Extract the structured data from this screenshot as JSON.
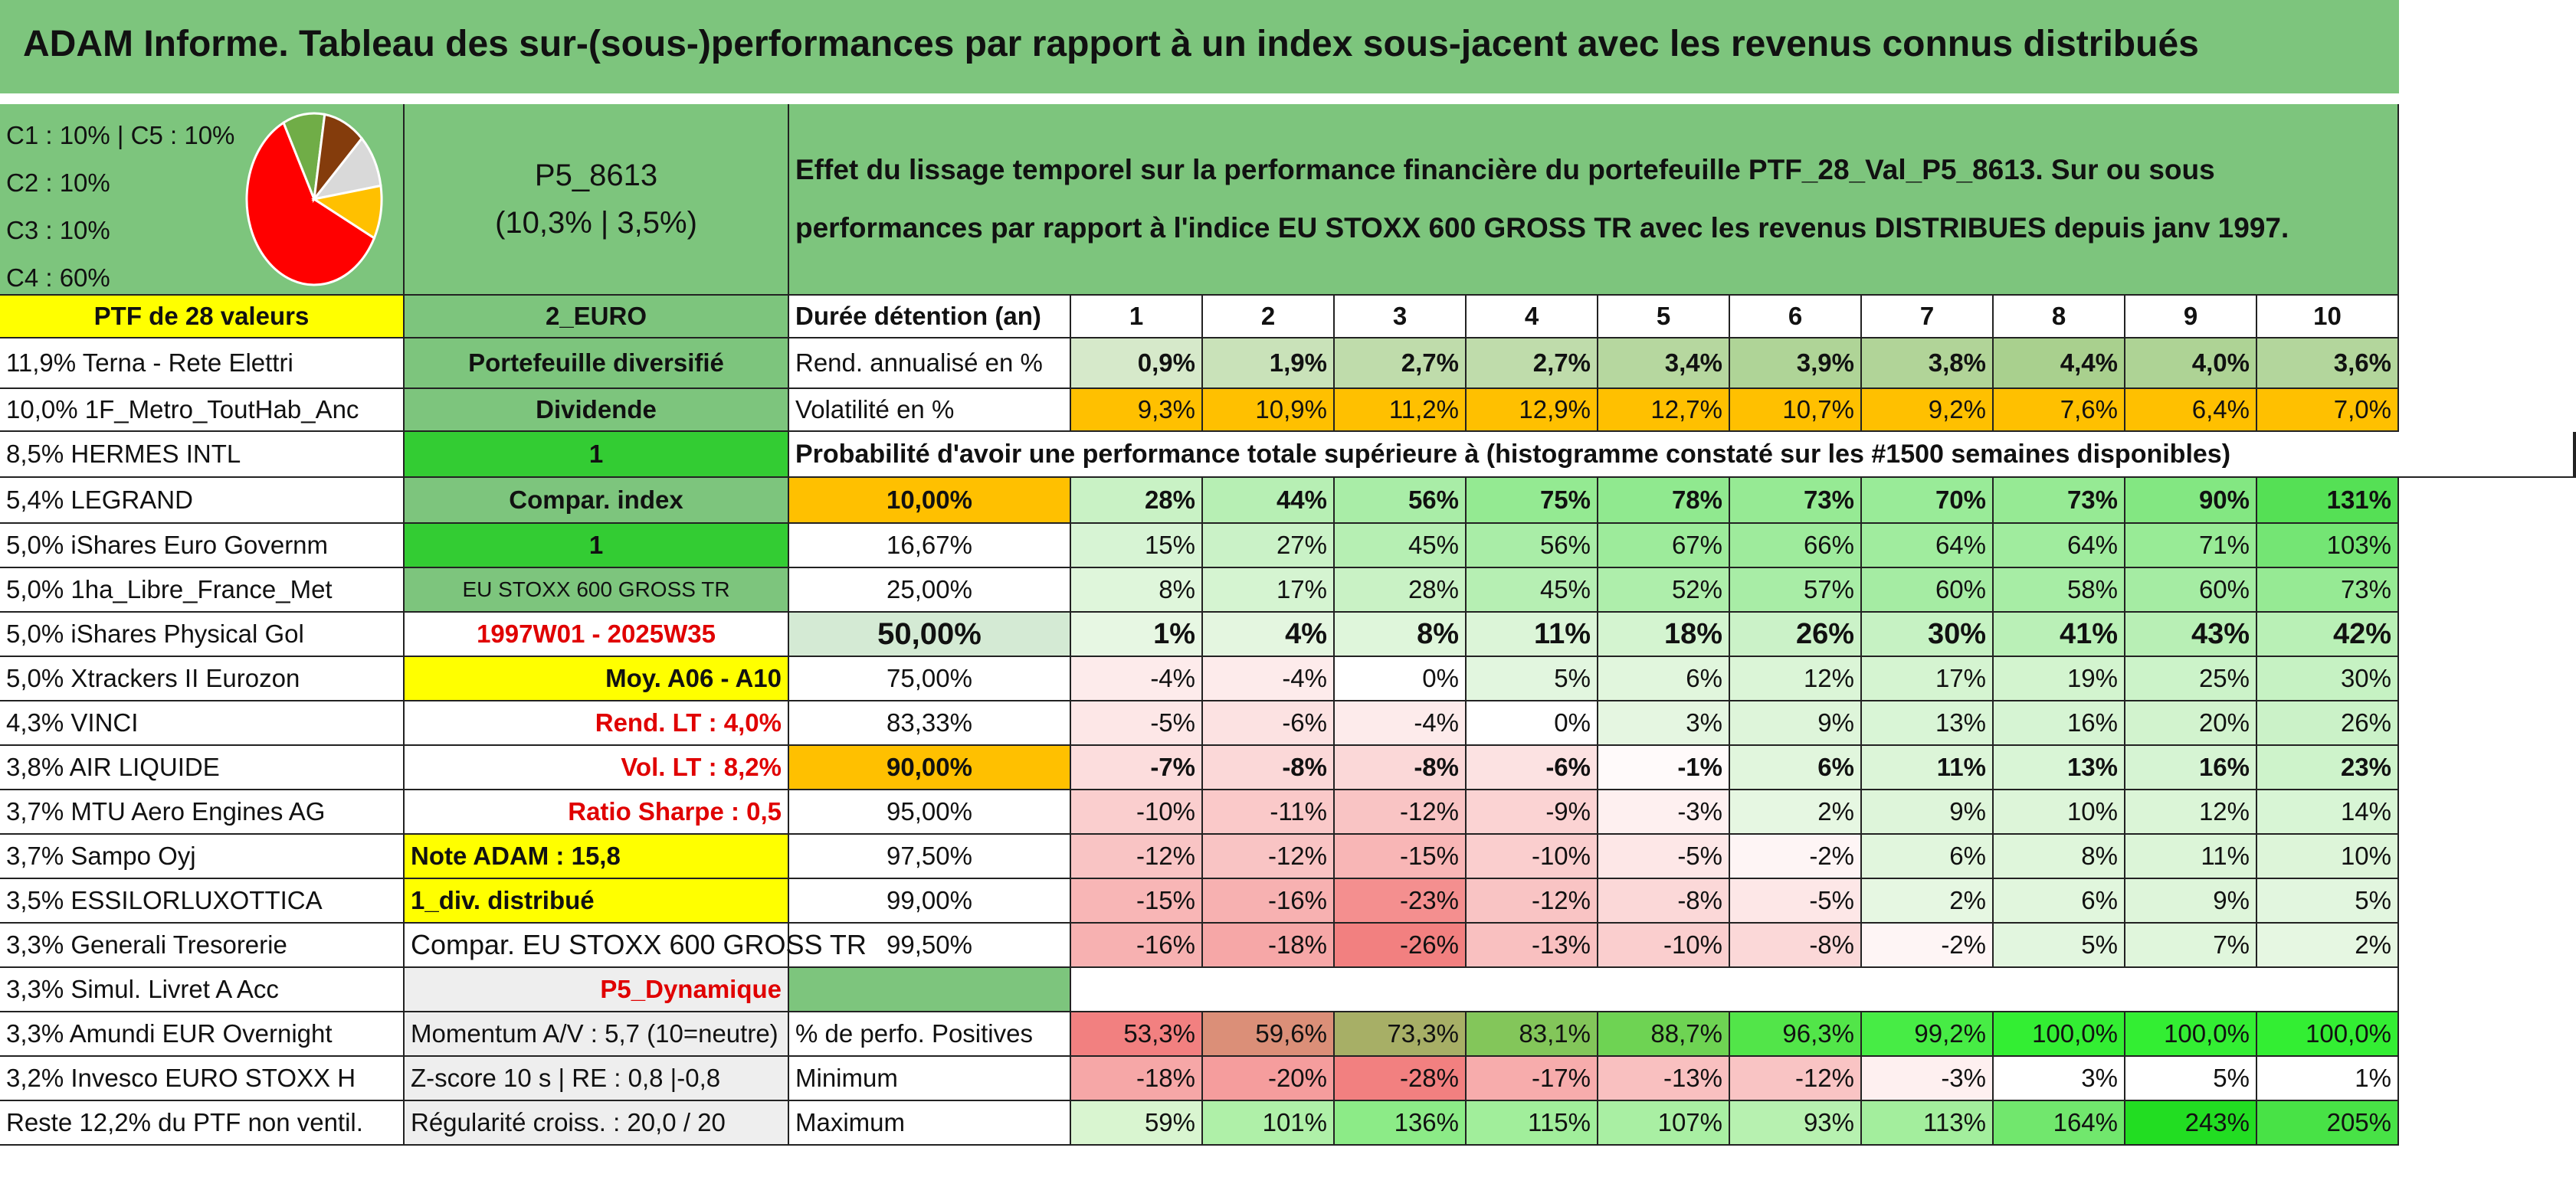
{
  "title": "ADAM Informe. Tableau des sur-(sous-)performances par rapport à un index sous-jacent avec les revenus connus distribués",
  "allocation": {
    "lines": [
      "C1 : 10% | C5 : 10%",
      "C2 : 10%",
      "C3 : 10%",
      "C4 : 60%"
    ],
    "slices": [
      {
        "name": "C4",
        "value": 60,
        "color": "#ff0000"
      },
      {
        "name": "C1",
        "value": 10,
        "color": "#70ad47"
      },
      {
        "name": "C2",
        "value": 10,
        "color": "#843c0c"
      },
      {
        "name": "C3",
        "value": 10,
        "color": "#d9d9d9"
      },
      {
        "name": "C5",
        "value": 10,
        "color": "#ffc000"
      }
    ]
  },
  "portfolio": {
    "code": "P5_8613",
    "stats": "(10,3% | 3,5%)",
    "description": "Effet du lissage temporel sur la performance financière du portefeuille PTF_28_Val_P5_8613. Sur ou sous performances par rapport à l'indice EU STOXX 600 GROSS TR avec les revenus DISTRIBUES depuis janv 1997.",
    "ptf_label": "PTF de 28 valeurs",
    "currency": "2_EURO"
  },
  "holdings": [
    "11,9% Terna - Rete Elettri",
    "10,0% 1F_Metro_ToutHab_Anc",
    "8,5% HERMES INTL",
    "5,4% LEGRAND",
    "5,0% iShares Euro Governm",
    "5,0% 1ha_Libre_France_Met",
    "5,0% iShares Physical Gol",
    "5,0% Xtrackers II Eurozon",
    "4,3% VINCI",
    "3,8% AIR LIQUIDE",
    "3,7% MTU Aero Engines AG",
    "3,7% Sampo Oyj",
    "3,5% ESSILORLUXOTTICA",
    "3,3% Generali Tresorerie",
    "3,3% Simul. Livret A Acc",
    "3,3% Amundi EUR Overnight",
    "3,2% Invesco EURO STOXX H",
    "Reste 12,2% du PTF non ventil."
  ],
  "params": [
    "Portefeuille diversifié",
    "Dividende",
    "1",
    "Compar. index",
    "1",
    "EU STOXX 600 GROSS TR",
    "1997W01 - 2025W35",
    "Moy. A06 - A10",
    "Rend. LT : 4,0%",
    "Vol. LT : 8,2%",
    "Ratio Sharpe : 0,5",
    "Note ADAM : 15,8",
    "1_div. distribué",
    "Compar. EU STOXX 600 GROSS TR",
    "P5_Dynamique",
    "Momentum A/V : 5,7 (10=neutre)",
    "Z-score 10 s | RE : 0,8 |-0,8",
    "Régularité croiss. : 20,0 / 20"
  ],
  "stats_table": {
    "duration_label": "Durée détention (an)",
    "years": [
      "1",
      "2",
      "3",
      "4",
      "5",
      "6",
      "7",
      "8",
      "9",
      "10"
    ],
    "rows": [
      {
        "label": "Rend. annualisé en %",
        "values": [
          "0,9%",
          "1,9%",
          "2,7%",
          "2,7%",
          "3,4%",
          "3,9%",
          "3,8%",
          "4,4%",
          "4,0%",
          "3,6%"
        ]
      },
      {
        "label": "Volatilité en %",
        "values": [
          "9,3%",
          "10,9%",
          "11,2%",
          "12,9%",
          "12,7%",
          "10,7%",
          "9,2%",
          "7,6%",
          "6,4%",
          "7,0%"
        ]
      }
    ]
  },
  "probability": {
    "header": "Probabilité d'avoir une performance totale supérieure à (histogramme constaté sur les #1500 semaines disponibles)",
    "rows": [
      {
        "level": "10,00%",
        "values": [
          "28%",
          "44%",
          "56%",
          "75%",
          "78%",
          "73%",
          "70%",
          "73%",
          "90%",
          "131%"
        ]
      },
      {
        "level": "16,67%",
        "values": [
          "15%",
          "27%",
          "45%",
          "56%",
          "67%",
          "66%",
          "64%",
          "64%",
          "71%",
          "103%"
        ]
      },
      {
        "level": "25,00%",
        "values": [
          "8%",
          "17%",
          "28%",
          "45%",
          "52%",
          "57%",
          "60%",
          "58%",
          "60%",
          "73%"
        ]
      },
      {
        "level": "50,00%",
        "values": [
          "1%",
          "4%",
          "8%",
          "11%",
          "18%",
          "26%",
          "30%",
          "41%",
          "43%",
          "42%"
        ]
      },
      {
        "level": "75,00%",
        "values": [
          "-4%",
          "-4%",
          "0%",
          "5%",
          "6%",
          "12%",
          "17%",
          "19%",
          "25%",
          "30%"
        ]
      },
      {
        "level": "83,33%",
        "values": [
          "-5%",
          "-6%",
          "-4%",
          "0%",
          "3%",
          "9%",
          "13%",
          "16%",
          "20%",
          "26%"
        ]
      },
      {
        "level": "90,00%",
        "values": [
          "-7%",
          "-8%",
          "-8%",
          "-6%",
          "-1%",
          "6%",
          "11%",
          "13%",
          "16%",
          "23%"
        ]
      },
      {
        "level": "95,00%",
        "values": [
          "-10%",
          "-11%",
          "-12%",
          "-9%",
          "-3%",
          "2%",
          "9%",
          "10%",
          "12%",
          "14%"
        ]
      },
      {
        "level": "97,50%",
        "values": [
          "-12%",
          "-12%",
          "-15%",
          "-10%",
          "-5%",
          "-2%",
          "6%",
          "8%",
          "11%",
          "10%"
        ]
      },
      {
        "level": "99,00%",
        "values": [
          "-15%",
          "-16%",
          "-23%",
          "-12%",
          "-8%",
          "-5%",
          "2%",
          "6%",
          "9%",
          "5%"
        ]
      },
      {
        "level": "99,50%",
        "values": [
          "-16%",
          "-18%",
          "-26%",
          "-13%",
          "-10%",
          "-8%",
          "-2%",
          "5%",
          "7%",
          "2%"
        ]
      }
    ]
  },
  "summary": [
    {
      "label": "% de perfo. Positives",
      "values": [
        "53,3%",
        "59,6%",
        "73,3%",
        "83,1%",
        "88,7%",
        "96,3%",
        "99,2%",
        "100,0%",
        "100,0%",
        "100,0%"
      ]
    },
    {
      "label": "Minimum",
      "values": [
        "-18%",
        "-20%",
        "-28%",
        "-17%",
        "-13%",
        "-12%",
        "-3%",
        "3%",
        "5%",
        "1%"
      ]
    },
    {
      "label": "Maximum",
      "values": [
        "59%",
        "101%",
        "136%",
        "115%",
        "107%",
        "93%",
        "113%",
        "164%",
        "243%",
        "205%"
      ]
    }
  ]
}
